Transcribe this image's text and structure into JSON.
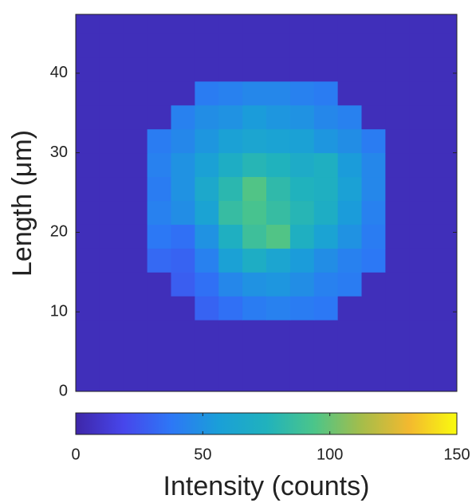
{
  "chart_data": {
    "type": "heatmap",
    "ylabel": "Length (μm)",
    "colorbar_label": "Intensity (counts)",
    "xlim": [
      0,
      48
    ],
    "ylim": [
      0,
      47.4
    ],
    "yticks": [
      0,
      10,
      20,
      30,
      40
    ],
    "clim": [
      0,
      150
    ],
    "cticks": [
      0,
      50,
      100,
      150
    ],
    "colormap": [
      "#3e26a8",
      "#4746eb",
      "#2d77f6",
      "#1a9fd8",
      "#20b2bd",
      "#4bc58a",
      "#a5bd4a",
      "#f3b92f",
      "#f9fb0e"
    ],
    "x": [
      1.5,
      4.5,
      7.5,
      10.5,
      13.5,
      16.5,
      19.5,
      22.5,
      25.5,
      28.5,
      31.5,
      34.5,
      37.5,
      40.5,
      43.5,
      46.5
    ],
    "y": [
      1.5,
      4.5,
      7.5,
      10.5,
      13.5,
      16.5,
      19.5,
      22.5,
      25.5,
      28.5,
      31.5,
      34.5,
      37.5,
      40.5,
      43.5,
      46.5
    ],
    "z": [
      [
        5,
        5,
        5,
        5,
        5,
        5,
        5,
        5,
        5,
        5,
        5,
        5,
        5,
        5,
        5,
        5
      ],
      [
        5,
        5,
        5,
        5,
        5,
        5,
        5,
        5,
        5,
        5,
        5,
        5,
        5,
        5,
        5,
        5
      ],
      [
        5,
        5,
        5,
        5,
        5,
        5,
        5,
        5,
        5,
        5,
        5,
        5,
        5,
        5,
        5,
        5
      ],
      [
        5,
        5,
        5,
        5,
        5,
        30,
        35,
        40,
        42,
        40,
        38,
        5,
        5,
        5,
        5,
        5
      ],
      [
        5,
        5,
        5,
        5,
        28,
        35,
        45,
        50,
        52,
        48,
        42,
        40,
        5,
        5,
        5,
        5
      ],
      [
        5,
        5,
        5,
        32,
        30,
        42,
        58,
        70,
        62,
        55,
        48,
        42,
        38,
        5,
        5,
        5
      ],
      [
        5,
        5,
        5,
        38,
        35,
        50,
        72,
        88,
        95,
        72,
        60,
        50,
        40,
        5,
        5,
        5
      ],
      [
        5,
        5,
        5,
        42,
        48,
        60,
        85,
        92,
        85,
        78,
        70,
        55,
        42,
        5,
        5,
        5
      ],
      [
        5,
        5,
        5,
        40,
        50,
        65,
        80,
        95,
        82,
        75,
        72,
        58,
        45,
        5,
        5,
        5
      ],
      [
        5,
        5,
        5,
        42,
        50,
        58,
        70,
        78,
        75,
        68,
        72,
        55,
        45,
        5,
        5,
        5
      ],
      [
        5,
        5,
        5,
        40,
        45,
        52,
        58,
        62,
        60,
        58,
        52,
        48,
        40,
        5,
        5,
        5
      ],
      [
        5,
        5,
        5,
        5,
        42,
        48,
        50,
        55,
        52,
        50,
        45,
        42,
        5,
        5,
        5,
        5
      ],
      [
        5,
        5,
        5,
        5,
        5,
        40,
        42,
        45,
        45,
        42,
        40,
        5,
        5,
        5,
        5,
        5
      ],
      [
        5,
        5,
        5,
        5,
        5,
        5,
        5,
        5,
        5,
        5,
        5,
        5,
        5,
        5,
        5,
        5
      ],
      [
        5,
        5,
        5,
        5,
        5,
        5,
        5,
        5,
        5,
        5,
        5,
        5,
        5,
        5,
        5,
        5
      ],
      [
        5,
        5,
        5,
        5,
        5,
        5,
        5,
        5,
        5,
        5,
        5,
        5,
        5,
        5,
        5,
        5
      ]
    ]
  }
}
